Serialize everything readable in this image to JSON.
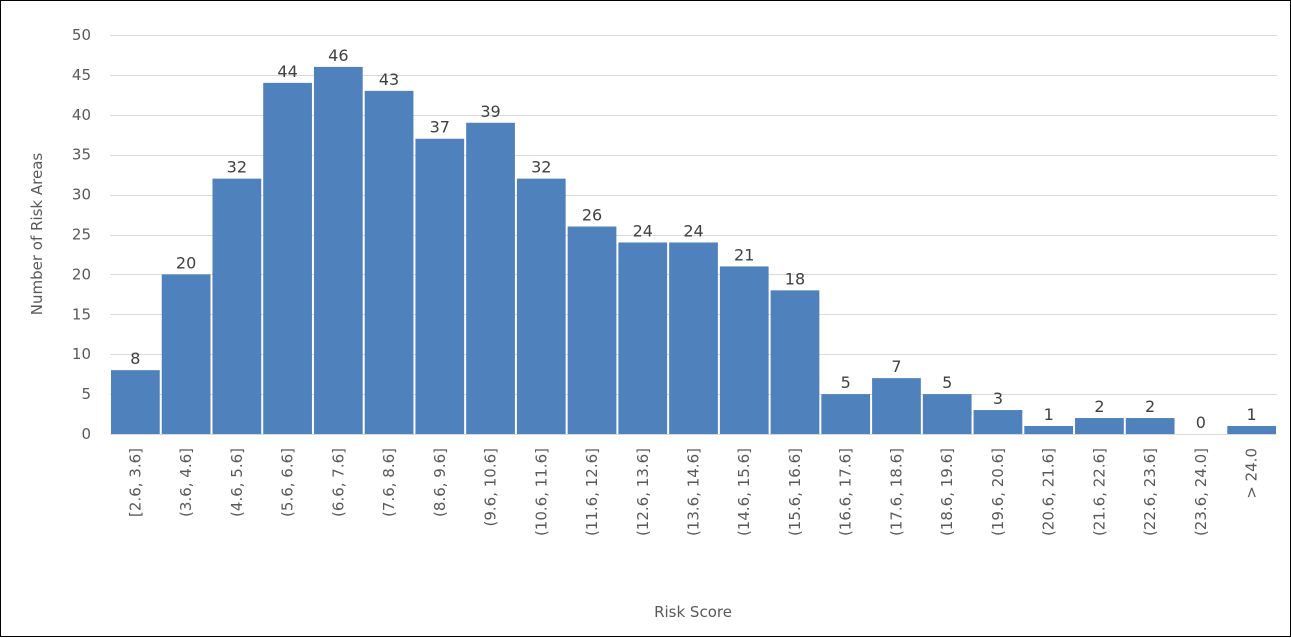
{
  "chart_data": {
    "type": "bar",
    "title": "",
    "xlabel": "Risk Score",
    "ylabel": "Number  of Risk Areas",
    "ylim": [
      0,
      50
    ],
    "ytick_step": 5,
    "grid": true,
    "legend": "none",
    "bar_color": "#4f81bd",
    "categories": [
      "[2.6, 3.6]",
      "(3.6, 4.6]",
      "(4.6, 5.6]",
      "(5.6, 6.6]",
      "(6.6, 7.6]",
      "(7.6, 8.6]",
      "(8.6, 9.6]",
      "(9.6, 10.6]",
      "(10.6, 11.6]",
      "(11.6, 12.6]",
      "(12.6, 13.6]",
      "(13.6, 14.6]",
      "(14.6, 15.6]",
      "(15.6, 16.6]",
      "(16.6, 17.6]",
      "(17.6, 18.6]",
      "(18.6, 19.6]",
      "(19.6, 20.6]",
      "(20.6, 21.6]",
      "(21.6, 22.6]",
      "(22.6, 23.6]",
      "(23.6, 24.0]",
      "> 24.0"
    ],
    "values": [
      8,
      20,
      32,
      44,
      46,
      43,
      37,
      39,
      32,
      26,
      24,
      24,
      21,
      18,
      5,
      7,
      5,
      3,
      1,
      2,
      2,
      0,
      1
    ]
  }
}
